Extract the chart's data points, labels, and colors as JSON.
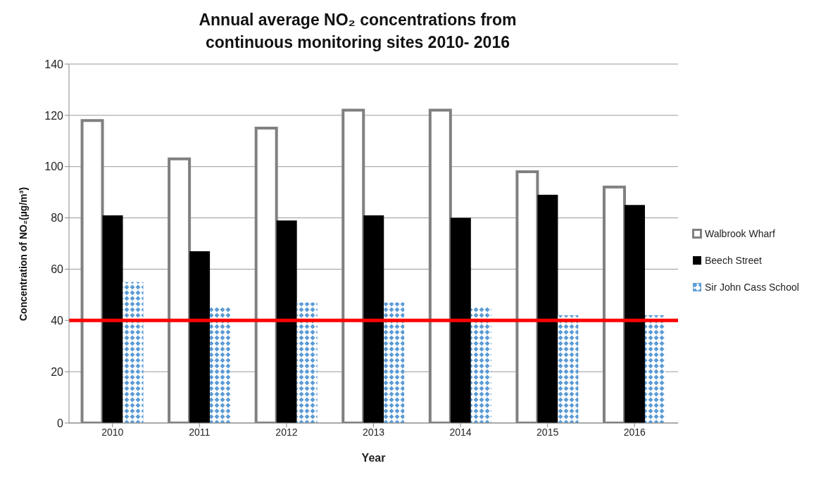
{
  "chart_data": {
    "type": "bar",
    "title": "Annual average NO₂ concentrations from continuous monitoring sites 2010- 2016",
    "xlabel": "Year",
    "ylabel": "Concentration of NO₂(µg/m³)",
    "categories": [
      "2010",
      "2011",
      "2012",
      "2013",
      "2014",
      "2015",
      "2016"
    ],
    "series": [
      {
        "name": "Walbrook Wharf",
        "color": "#ffffff",
        "values": [
          118,
          103,
          115,
          122,
          122,
          98,
          92
        ]
      },
      {
        "name": "Beech Street",
        "color": "#000000",
        "values": [
          81,
          67,
          79,
          81,
          80,
          89,
          85
        ]
      },
      {
        "name": "Sir John Cass School",
        "color": "#5b9bd5",
        "values": [
          55,
          45,
          47,
          47,
          45,
          42,
          42
        ]
      }
    ],
    "ylim": [
      0,
      140
    ],
    "yticks": [
      0,
      20,
      40,
      60,
      80,
      100,
      120,
      140
    ],
    "ref_lines": [
      {
        "axis": "y",
        "value": 40,
        "color": "#ff0000"
      }
    ],
    "grid": "y",
    "legend": "right"
  }
}
